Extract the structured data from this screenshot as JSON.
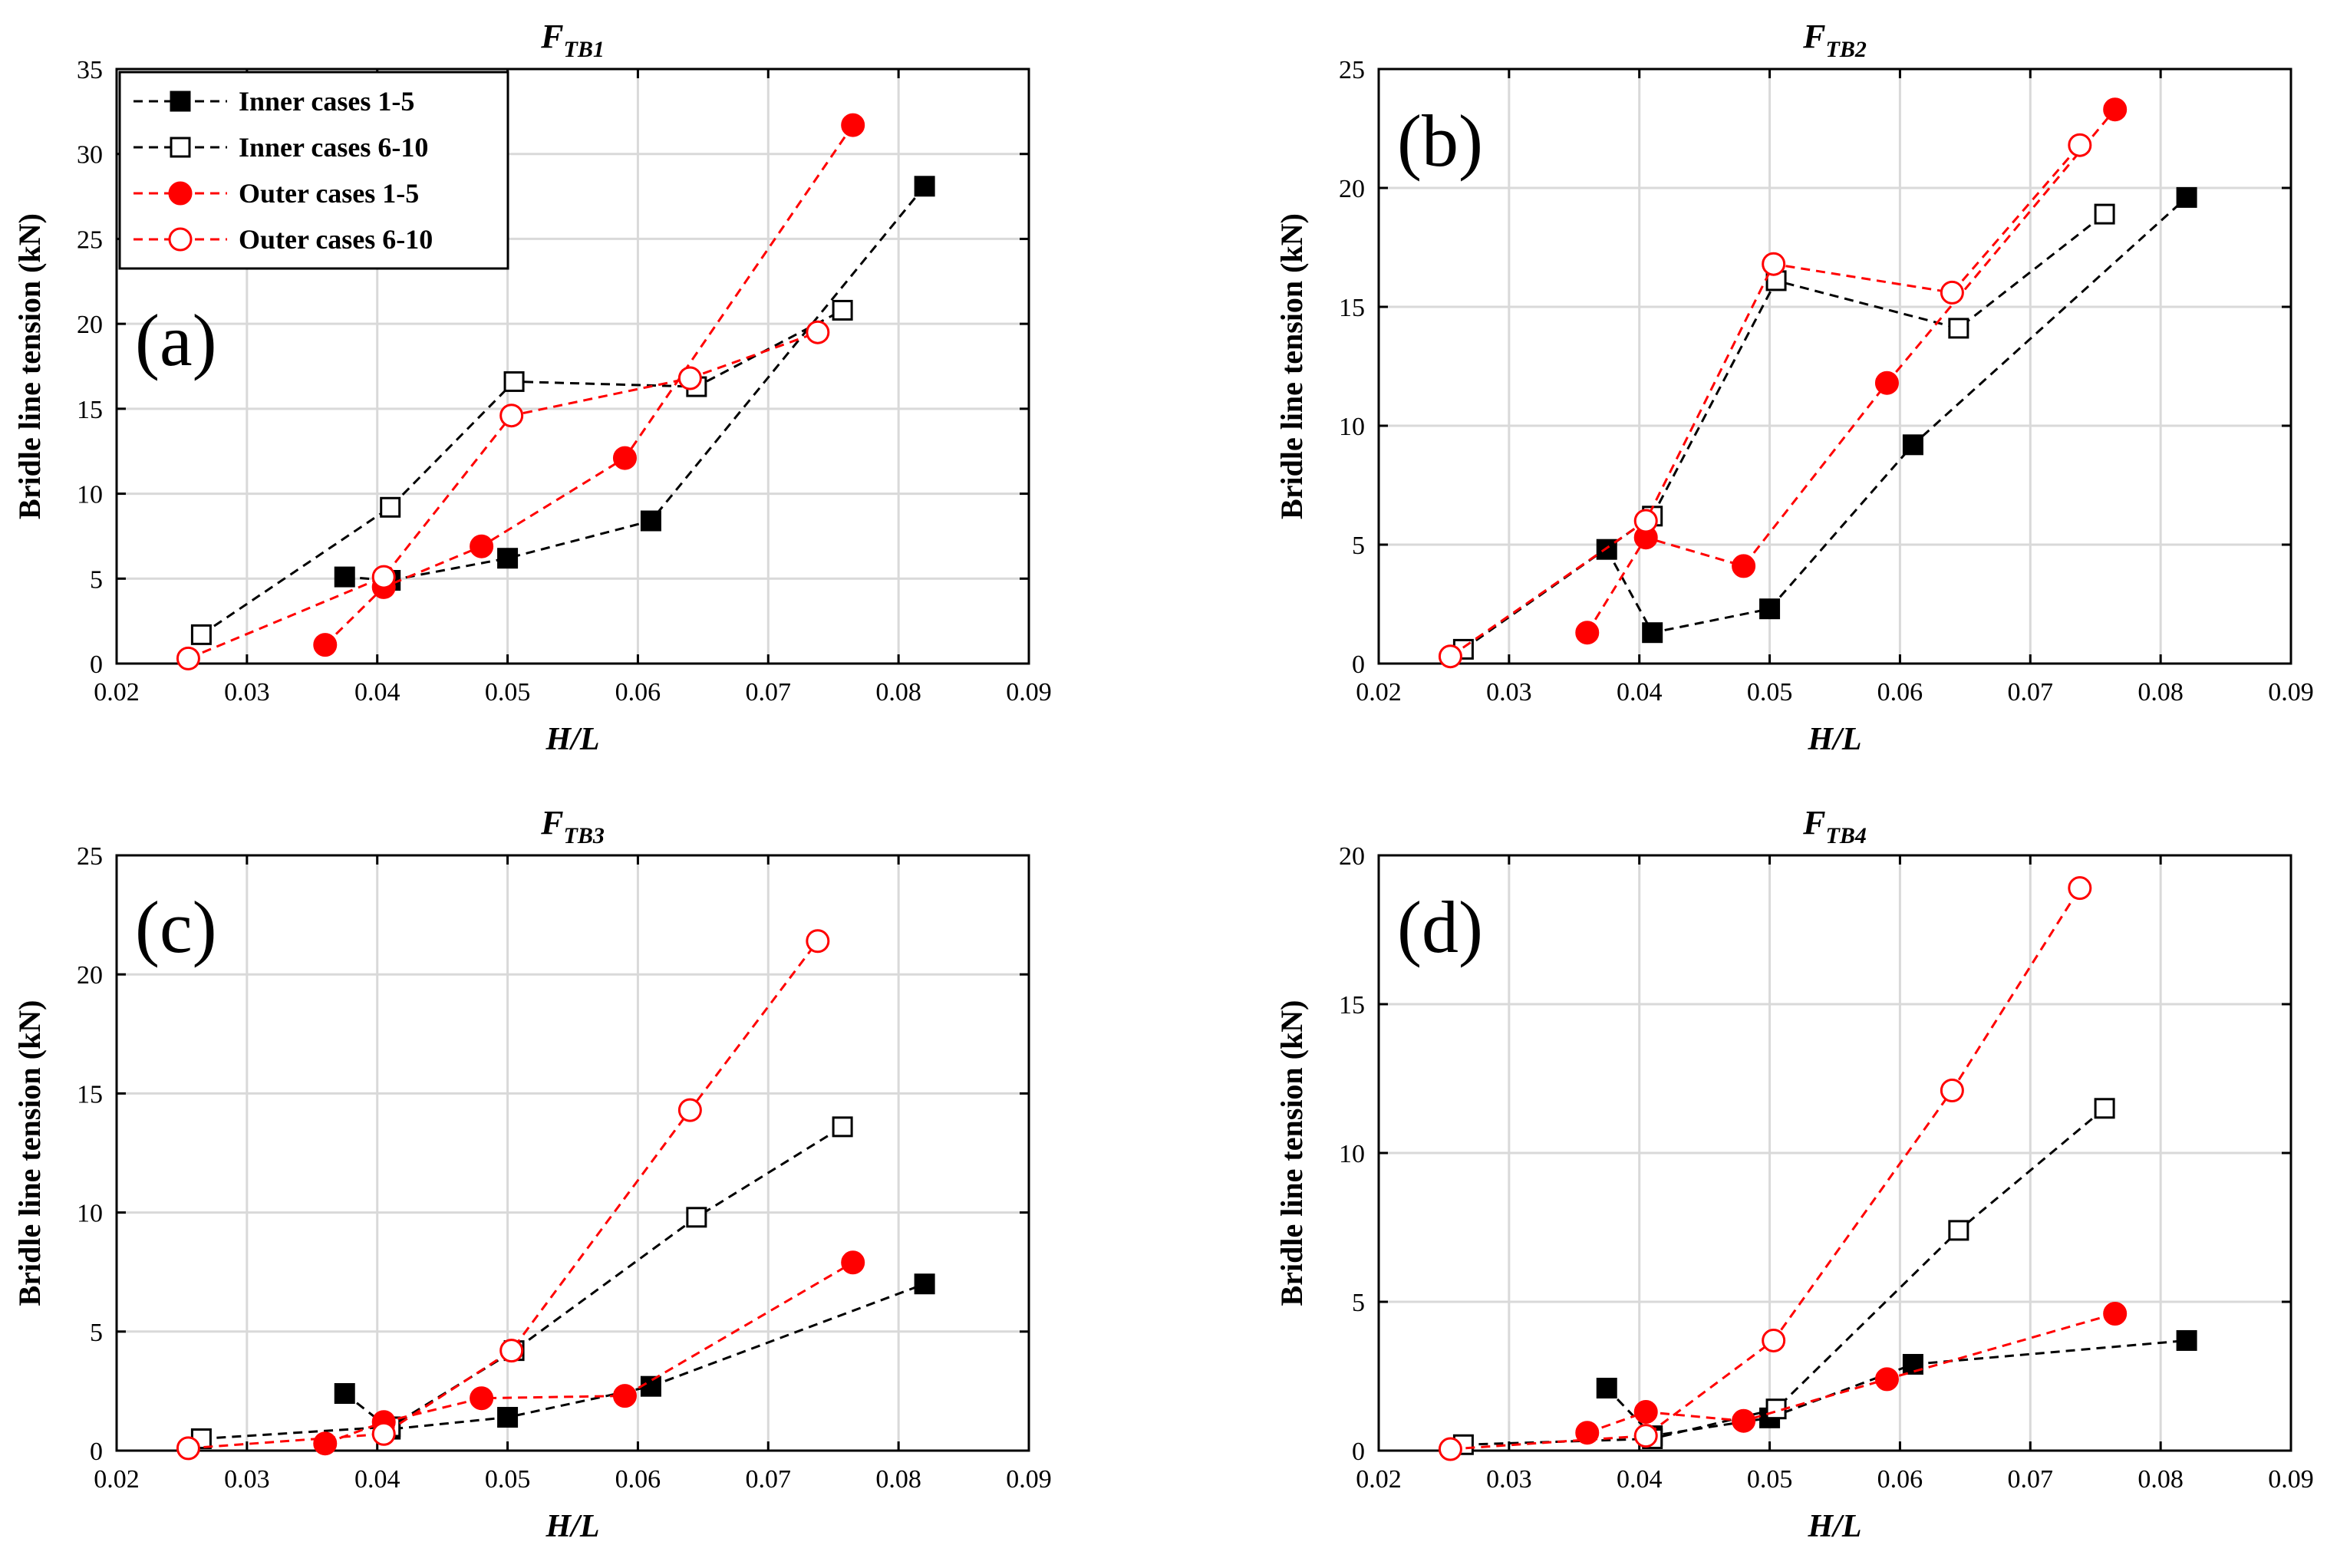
{
  "colors": {
    "black": "#000000",
    "red": "#ff0000",
    "grid": "#d9d9d9"
  },
  "legend": [
    {
      "label": "Inner cases 1-5",
      "color": "#000000",
      "marker": "filled-square"
    },
    {
      "label": "Inner cases 6-10",
      "color": "#000000",
      "marker": "open-square"
    },
    {
      "label": "Outer cases 1-5",
      "color": "#ff0000",
      "marker": "filled-circle"
    },
    {
      "label": "Outer cases 6-10",
      "color": "#ff0000",
      "marker": "open-circle"
    }
  ],
  "chart_data": [
    {
      "type": "line",
      "title_main": "F",
      "title_sub": "TB1",
      "panel_label": "(a)",
      "xlabel": "H/L",
      "ylabel": "Bridle line tension (kN)",
      "xlim": [
        0.02,
        0.09
      ],
      "ylim": [
        0,
        35
      ],
      "xticks": [
        0.02,
        0.03,
        0.04,
        0.05,
        0.06,
        0.07,
        0.08,
        0.09
      ],
      "xtick_labels": [
        "0.02",
        "0.03",
        "0.04",
        "0.05",
        "0.06",
        "0.07",
        "0.08",
        "0.09"
      ],
      "yticks": [
        0,
        5,
        10,
        15,
        20,
        25,
        30,
        35
      ],
      "ytick_labels": [
        "0",
        "5",
        "10",
        "15",
        "20",
        "25",
        "30",
        "35"
      ],
      "grid": true,
      "legend_position": "top-left",
      "series": [
        {
          "name": "Inner cases 1-5",
          "x": [
            0.0375,
            0.041,
            0.05,
            0.061,
            0.082
          ],
          "y": [
            5.1,
            4.9,
            6.2,
            8.4,
            28.1
          ]
        },
        {
          "name": "Inner cases 6-10",
          "x": [
            0.0265,
            0.041,
            0.0505,
            0.0645,
            0.0757
          ],
          "y": [
            1.7,
            9.2,
            16.6,
            16.3,
            20.8
          ]
        },
        {
          "name": "Outer cases 1-5",
          "x": [
            0.036,
            0.0405,
            0.048,
            0.059,
            0.0765
          ],
          "y": [
            1.1,
            4.5,
            6.9,
            12.1,
            31.7
          ]
        },
        {
          "name": "Outer cases 6-10",
          "x": [
            0.0255,
            0.0405,
            0.0503,
            0.064,
            0.0738
          ],
          "y": [
            0.3,
            5.1,
            14.6,
            16.8,
            19.5
          ]
        }
      ]
    },
    {
      "type": "line",
      "title_main": "F",
      "title_sub": "TB2",
      "panel_label": "(b)",
      "xlabel": "H/L",
      "ylabel": "Bridle line tension (kN)",
      "xlim": [
        0.02,
        0.09
      ],
      "ylim": [
        0,
        25
      ],
      "xticks": [
        0.02,
        0.03,
        0.04,
        0.05,
        0.06,
        0.07,
        0.08,
        0.09
      ],
      "xtick_labels": [
        "0.02",
        "0.03",
        "0.04",
        "0.05",
        "0.06",
        "0.07",
        "0.08",
        "0.09"
      ],
      "yticks": [
        0,
        5,
        10,
        15,
        20,
        25
      ],
      "ytick_labels": [
        "0",
        "5",
        "10",
        "15",
        "20",
        "25"
      ],
      "grid": true,
      "series": [
        {
          "name": "Inner cases 1-5",
          "x": [
            0.0375,
            0.041,
            0.05,
            0.061,
            0.082
          ],
          "y": [
            4.8,
            1.3,
            2.3,
            9.2,
            19.6
          ]
        },
        {
          "name": "Inner cases 6-10",
          "x": [
            0.0265,
            0.041,
            0.0505,
            0.0645,
            0.0757
          ],
          "y": [
            0.6,
            6.2,
            16.1,
            14.1,
            18.9
          ]
        },
        {
          "name": "Outer cases 1-5",
          "x": [
            0.036,
            0.0405,
            0.048,
            0.059,
            0.0765
          ],
          "y": [
            1.3,
            5.3,
            4.1,
            11.8,
            23.3
          ]
        },
        {
          "name": "Outer cases 6-10",
          "x": [
            0.0255,
            0.0405,
            0.0503,
            0.064,
            0.0738
          ],
          "y": [
            0.3,
            6.0,
            16.8,
            15.6,
            21.8
          ]
        }
      ]
    },
    {
      "type": "line",
      "title_main": "F",
      "title_sub": "TB3",
      "panel_label": "(c)",
      "xlabel": "H/L",
      "ylabel": "Bridle line tension (kN)",
      "xlim": [
        0.02,
        0.09
      ],
      "ylim": [
        0,
        25
      ],
      "xticks": [
        0.02,
        0.03,
        0.04,
        0.05,
        0.06,
        0.07,
        0.08,
        0.09
      ],
      "xtick_labels": [
        "0.02",
        "0.03",
        "0.04",
        "0.05",
        "0.06",
        "0.07",
        "0.08",
        "0.09"
      ],
      "yticks": [
        0,
        5,
        10,
        15,
        20,
        25
      ],
      "ytick_labels": [
        "0",
        "5",
        "10",
        "15",
        "20",
        "25"
      ],
      "grid": true,
      "series": [
        {
          "name": "Inner cases 1-5",
          "x": [
            0.0375,
            0.041,
            0.05,
            0.061,
            0.082
          ],
          "y": [
            2.4,
            0.9,
            1.4,
            2.7,
            7.0
          ]
        },
        {
          "name": "Inner cases 6-10",
          "x": [
            0.0265,
            0.041,
            0.0505,
            0.0645,
            0.0757
          ],
          "y": [
            0.5,
            1.0,
            4.2,
            9.8,
            13.6
          ]
        },
        {
          "name": "Outer cases 1-5",
          "x": [
            0.036,
            0.0405,
            0.048,
            0.059,
            0.0765
          ],
          "y": [
            0.3,
            1.2,
            2.2,
            2.3,
            7.9
          ]
        },
        {
          "name": "Outer cases 6-10",
          "x": [
            0.0255,
            0.0405,
            0.0503,
            0.064,
            0.0738
          ],
          "y": [
            0.1,
            0.7,
            4.2,
            14.3,
            21.4
          ]
        }
      ]
    },
    {
      "type": "line",
      "title_main": "F",
      "title_sub": "TB4",
      "panel_label": "(d)",
      "xlabel": "H/L",
      "ylabel": "Bridle line tension (kN)",
      "xlim": [
        0.02,
        0.09
      ],
      "ylim": [
        0,
        20
      ],
      "xticks": [
        0.02,
        0.03,
        0.04,
        0.05,
        0.06,
        0.07,
        0.08,
        0.09
      ],
      "xtick_labels": [
        "0.02",
        "0.03",
        "0.04",
        "0.05",
        "0.06",
        "0.07",
        "0.08",
        "0.09"
      ],
      "yticks": [
        0,
        5,
        10,
        15,
        20
      ],
      "ytick_labels": [
        "0",
        "5",
        "10",
        "15",
        "20"
      ],
      "grid": true,
      "series": [
        {
          "name": "Inner cases 1-5",
          "x": [
            0.0375,
            0.041,
            0.05,
            0.061,
            0.082
          ],
          "y": [
            2.1,
            0.5,
            1.1,
            2.9,
            3.7
          ]
        },
        {
          "name": "Inner cases 6-10",
          "x": [
            0.0265,
            0.041,
            0.0505,
            0.0645,
            0.0757
          ],
          "y": [
            0.2,
            0.4,
            1.4,
            7.4,
            11.5
          ]
        },
        {
          "name": "Outer cases 1-5",
          "x": [
            0.036,
            0.0405,
            0.048,
            0.059,
            0.0765
          ],
          "y": [
            0.6,
            1.3,
            1.0,
            2.4,
            4.6
          ]
        },
        {
          "name": "Outer cases 6-10",
          "x": [
            0.0255,
            0.0405,
            0.0503,
            0.064,
            0.0738
          ],
          "y": [
            0.05,
            0.5,
            3.7,
            12.1,
            18.9
          ]
        }
      ]
    }
  ]
}
